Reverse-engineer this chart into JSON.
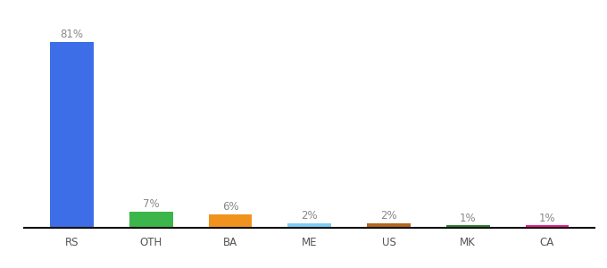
{
  "categories": [
    "RS",
    "OTH",
    "BA",
    "ME",
    "US",
    "MK",
    "CA"
  ],
  "values": [
    81,
    7,
    6,
    2,
    2,
    1,
    1
  ],
  "bar_colors": [
    "#3d6ee8",
    "#3cb54a",
    "#f0931e",
    "#7ecef4",
    "#b5651d",
    "#2e7d32",
    "#e91e8c"
  ],
  "labels": [
    "81%",
    "7%",
    "6%",
    "2%",
    "2%",
    "1%",
    "1%"
  ],
  "ylim": [
    0,
    90
  ],
  "background_color": "#ffffff",
  "label_color": "#888888",
  "label_fontsize": 8.5,
  "xlabel_fontsize": 8.5,
  "bar_width": 0.55
}
